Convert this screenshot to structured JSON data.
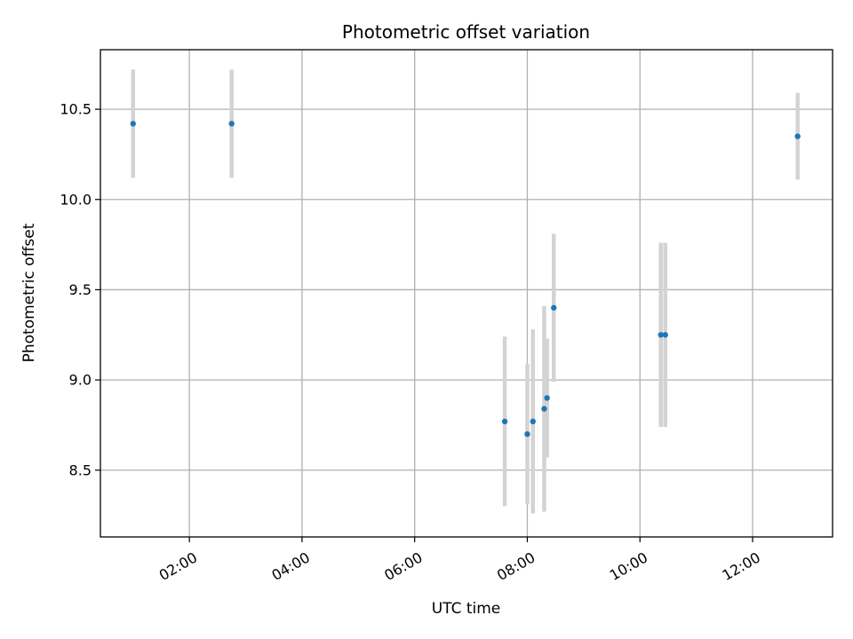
{
  "chart_data": {
    "type": "scatter",
    "title": "Photometric offset variation",
    "xlabel": "UTC time",
    "ylabel": "Photometric offset",
    "x_unit": "hours UTC",
    "xlim": [
      0.42,
      13.42
    ],
    "ylim": [
      8.13,
      10.83
    ],
    "grid": true,
    "x_ticks": [
      {
        "value": 2,
        "label": "02:00"
      },
      {
        "value": 4,
        "label": "04:00"
      },
      {
        "value": 6,
        "label": "06:00"
      },
      {
        "value": 8,
        "label": "08:00"
      },
      {
        "value": 10,
        "label": "10:00"
      },
      {
        "value": 12,
        "label": "12:00"
      }
    ],
    "y_ticks": [
      {
        "value": 8.5,
        "label": "8.5"
      },
      {
        "value": 9.0,
        "label": "9.0"
      },
      {
        "value": 9.5,
        "label": "9.5"
      },
      {
        "value": 10.0,
        "label": "10.0"
      },
      {
        "value": 10.5,
        "label": "10.5"
      }
    ],
    "series": [
      {
        "name": "offset",
        "points": [
          {
            "x": 1.0,
            "y": 10.42,
            "err": 0.3
          },
          {
            "x": 2.75,
            "y": 10.42,
            "err": 0.3
          },
          {
            "x": 7.6,
            "y": 8.77,
            "err": 0.47
          },
          {
            "x": 8.0,
            "y": 8.7,
            "err": 0.39
          },
          {
            "x": 8.1,
            "y": 8.77,
            "err": 0.51
          },
          {
            "x": 8.3,
            "y": 8.84,
            "err": 0.57
          },
          {
            "x": 8.35,
            "y": 8.9,
            "err": 0.33
          },
          {
            "x": 8.47,
            "y": 9.4,
            "err": 0.41
          },
          {
            "x": 10.37,
            "y": 9.25,
            "err": 0.51
          },
          {
            "x": 10.45,
            "y": 9.25,
            "err": 0.51
          },
          {
            "x": 12.8,
            "y": 10.35,
            "err": 0.24
          }
        ]
      }
    ],
    "colors": {
      "marker": "#1f77b4",
      "errorbar": "#d3d3d3"
    }
  }
}
